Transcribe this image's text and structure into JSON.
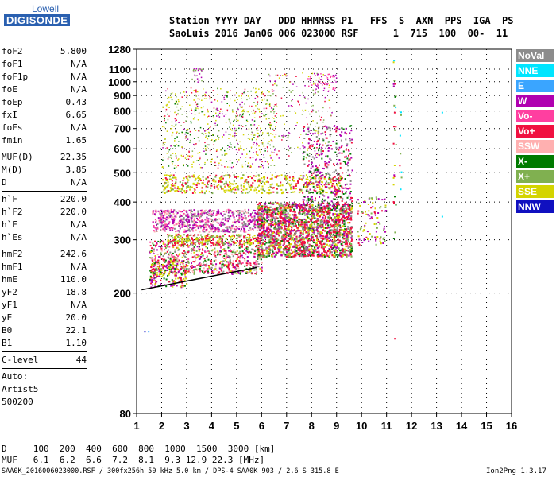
{
  "logo": {
    "line1": "Lowell",
    "line2": "DIGISONDE"
  },
  "header": {
    "labels": "Station YYYY DAY   DDD HHMMSS P1   FFS  S  AXN  PPS  IGA  PS",
    "values": "SaoLuis 2016 Jan06 006 023000 RSF      1  715  100  00-  11"
  },
  "params": [
    {
      "name": "foF2",
      "value": "5.800"
    },
    {
      "name": "foF1",
      "value": "N/A"
    },
    {
      "name": "foF1p",
      "value": "N/A"
    },
    {
      "name": "foE",
      "value": "N/A"
    },
    {
      "name": "foEp",
      "value": "0.43"
    },
    {
      "name": "fxI",
      "value": "6.65"
    },
    {
      "name": "foEs",
      "value": "N/A"
    },
    {
      "name": "fmin",
      "value": "1.65"
    },
    {
      "name": "MUF(D)",
      "value": "22.35"
    },
    {
      "name": "M(D)",
      "value": "3.85"
    },
    {
      "name": "D",
      "value": "N/A"
    },
    {
      "name": "h`F",
      "value": "220.0"
    },
    {
      "name": "h`F2",
      "value": "220.0"
    },
    {
      "name": "h`E",
      "value": "N/A"
    },
    {
      "name": "h`Es",
      "value": "N/A"
    },
    {
      "name": "hmF2",
      "value": "242.6"
    },
    {
      "name": "hmF1",
      "value": "N/A"
    },
    {
      "name": "hmE",
      "value": "110.0"
    },
    {
      "name": "yF2",
      "value": "18.8"
    },
    {
      "name": "yF1",
      "value": "N/A"
    },
    {
      "name": "yE",
      "value": "20.0"
    },
    {
      "name": "B0",
      "value": "22.1"
    },
    {
      "name": "B1",
      "value": "1.10"
    }
  ],
  "clevel": {
    "label": "C-level",
    "value": "44"
  },
  "auto": {
    "line1": "Auto:",
    "line2": "Artist5",
    "line3": "500200"
  },
  "legend": [
    {
      "label": "NoVal",
      "color": "#8c8c8c"
    },
    {
      "label": "NNE",
      "color": "#00e5ff"
    },
    {
      "label": "E",
      "color": "#3aa5ff"
    },
    {
      "label": "W",
      "color": "#b000b0"
    },
    {
      "label": "Vo-",
      "color": "#ff3fa0"
    },
    {
      "label": "Vo+",
      "color": "#f01040"
    },
    {
      "label": "SSW",
      "color": "#ffb0b0"
    },
    {
      "label": "X-",
      "color": "#007a00"
    },
    {
      "label": "X+",
      "color": "#80b050"
    },
    {
      "label": "SSE",
      "color": "#d4d400"
    },
    {
      "label": "NNW",
      "color": "#1010c0"
    }
  ],
  "chart_data": {
    "type": "scatter",
    "xlim": [
      1,
      16
    ],
    "ylim": [
      80,
      1280
    ],
    "yscale": "log",
    "x_ticks": [
      1,
      2,
      3,
      4,
      5,
      6,
      7,
      8,
      9,
      10,
      11,
      12,
      13,
      14,
      15,
      16
    ],
    "y_ticks": [
      80,
      200,
      300,
      400,
      500,
      600,
      700,
      800,
      900,
      1000,
      1100,
      1280
    ],
    "trace": {
      "x": [
        1.2,
        5.8
      ],
      "y": [
        205,
        243
      ]
    }
  },
  "dmuf": {
    "d_line": "D     100  200  400  600  800  1000  1500  3000 [km]",
    "muf_line": "MUF   6.1  6.2  6.6  7.2  8.1  9.3 12.9 22.3 [MHz]"
  },
  "footer": {
    "left": "SAA0K_2016006023000.RSF / 300fx256h 50 kHz 5.0 km / DPS-4 SAA0K 903 / 2.6 S 315.8 E",
    "right": "Ion2Png 1.3.17"
  }
}
